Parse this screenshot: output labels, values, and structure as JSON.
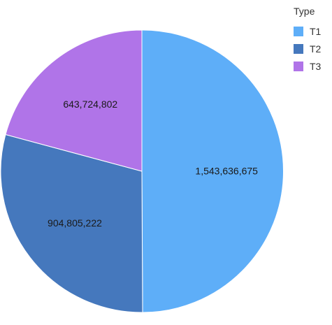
{
  "chart_data": {
    "type": "pie",
    "categories": [
      "T1",
      "T2",
      "T3"
    ],
    "values": [
      1543636675,
      904805222,
      643724802
    ],
    "value_labels": [
      "1,543,636,675",
      "904,805,222",
      "643,724,802"
    ],
    "colors": [
      "#5eaef8",
      "#4578bd",
      "#b074e8"
    ],
    "legend": {
      "title": "Type",
      "placement": "top-right"
    },
    "start_angle_deg": 0,
    "direction": "clockwise"
  }
}
